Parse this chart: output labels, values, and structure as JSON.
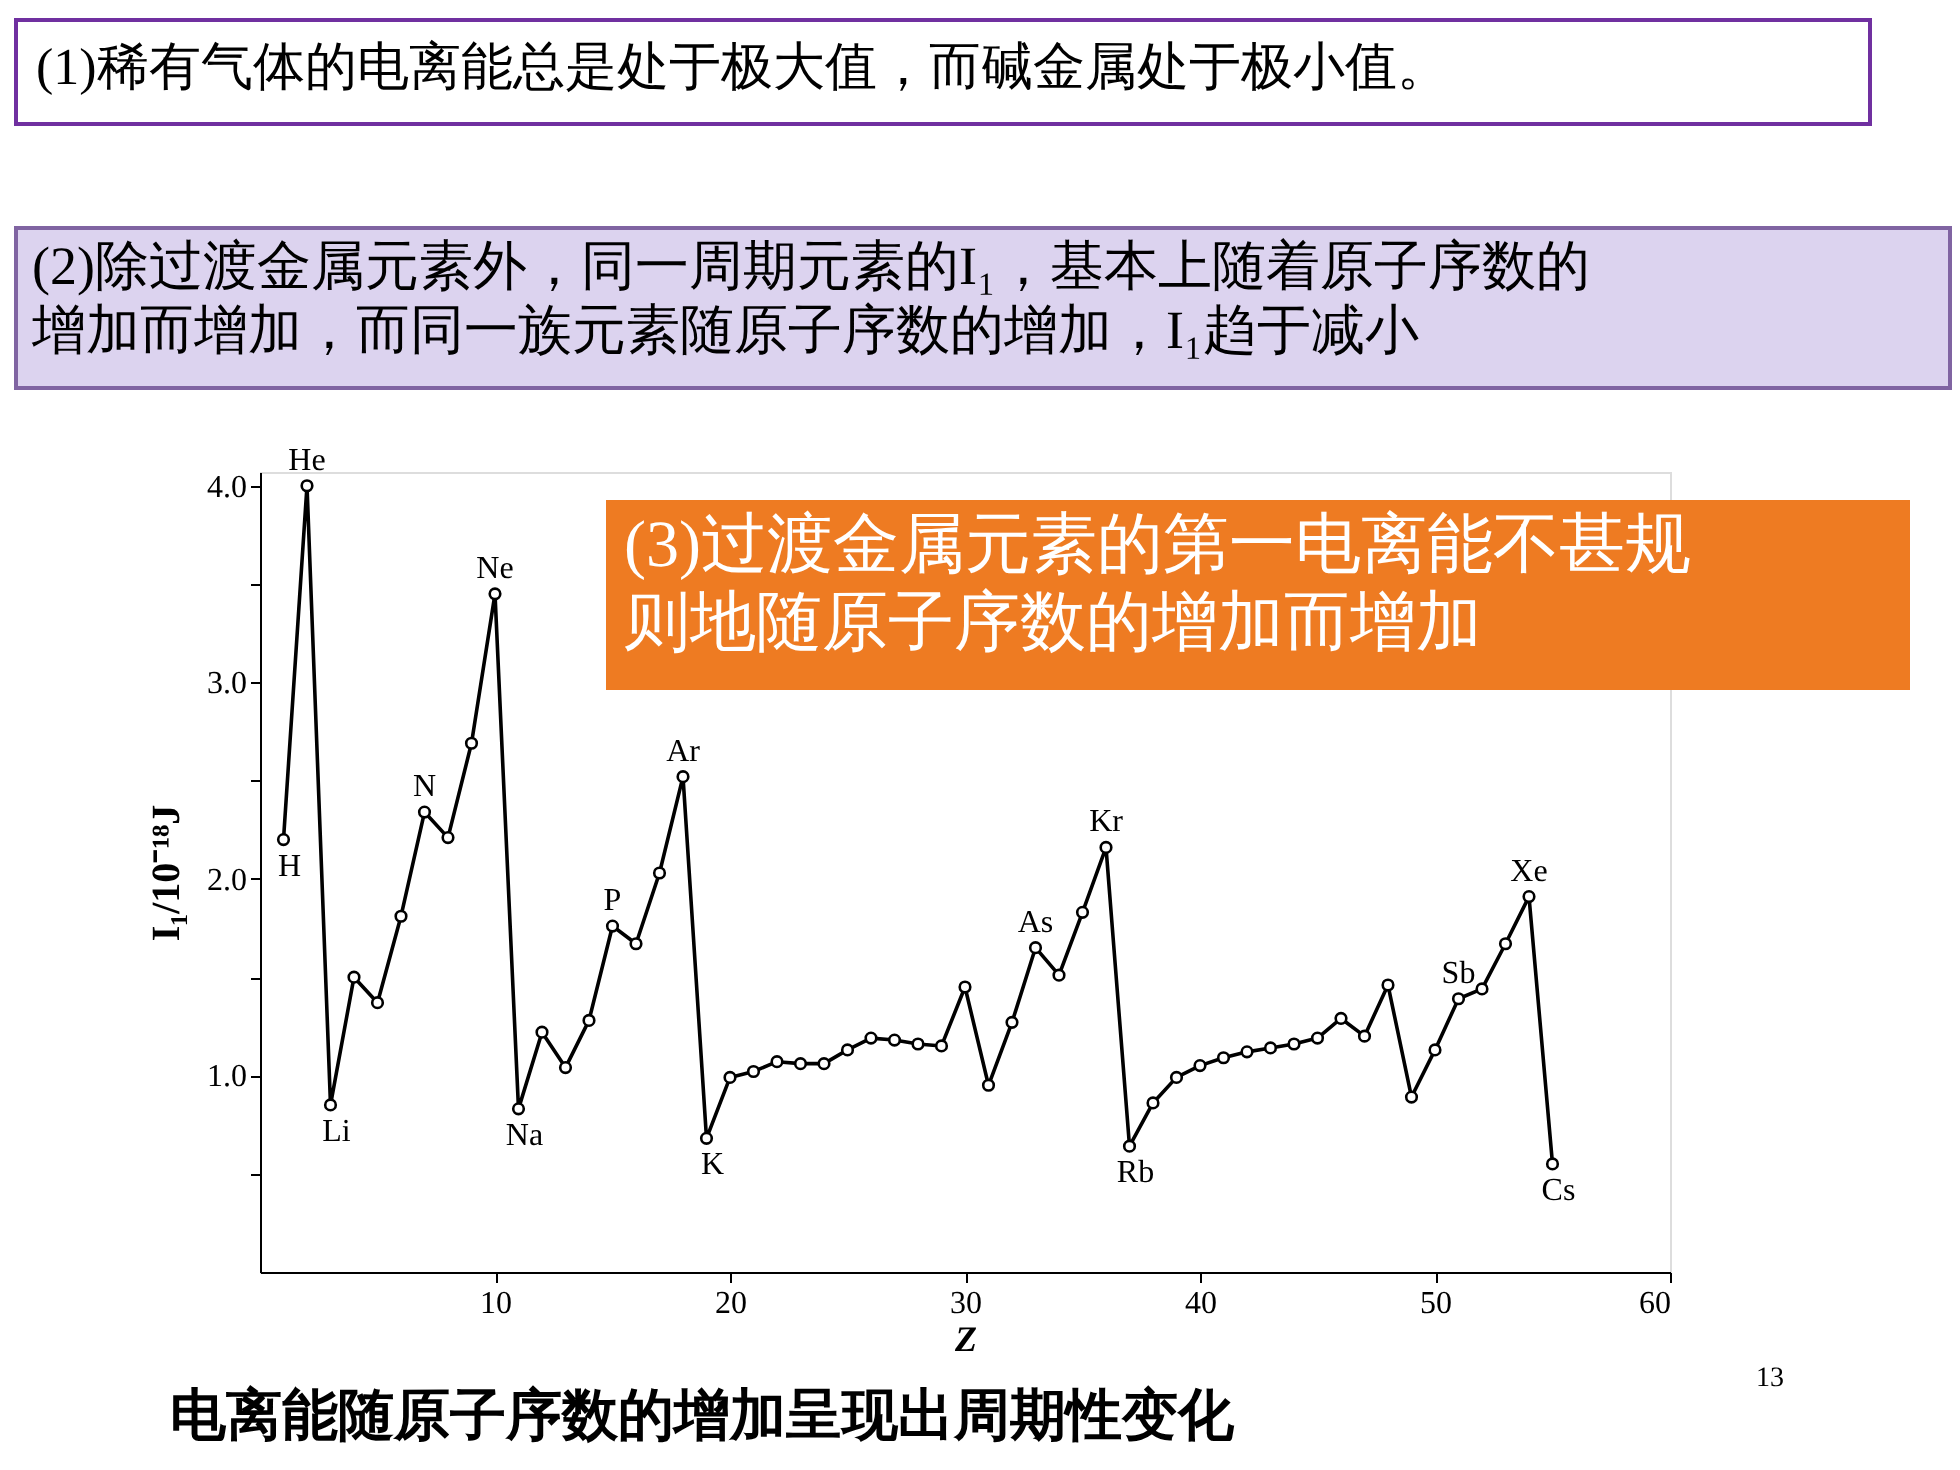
{
  "chart_data": {
    "type": "line",
    "x": [
      1,
      2,
      3,
      4,
      5,
      6,
      7,
      8,
      9,
      10,
      11,
      12,
      13,
      14,
      15,
      16,
      17,
      18,
      19,
      20,
      21,
      22,
      23,
      24,
      25,
      26,
      27,
      28,
      29,
      30,
      31,
      32,
      33,
      34,
      35,
      36,
      37,
      38,
      39,
      40,
      41,
      42,
      43,
      44,
      45,
      46,
      47,
      48,
      49,
      50,
      51,
      52,
      53,
      54,
      55
    ],
    "series": [
      {
        "color": "#000000",
        "values": [
          2.2,
          4.0,
          0.85,
          1.5,
          1.37,
          1.81,
          2.34,
          2.21,
          2.69,
          3.45,
          0.83,
          1.22,
          1.04,
          1.28,
          1.76,
          1.67,
          2.03,
          2.52,
          0.68,
          0.99,
          1.02,
          1.07,
          1.06,
          1.06,
          1.13,
          1.19,
          1.18,
          1.16,
          1.15,
          1.45,
          0.95,
          1.27,
          1.65,
          1.51,
          1.83,
          2.16,
          0.64,
          0.86,
          0.99,
          1.05,
          1.09,
          1.12,
          1.14,
          1.16,
          1.19,
          1.29,
          1.2,
          1.46,
          0.89,
          1.13,
          1.39,
          1.44,
          1.67,
          1.91,
          0.55
        ]
      }
    ],
    "xlabel": "Z",
    "ylabel": "I₁/10⁻¹⁸J",
    "xlim": [
      0,
      60
    ],
    "ylim": [
      0,
      4.07
    ],
    "xticks": [
      10,
      20,
      30,
      40,
      50,
      60
    ],
    "yticks": [
      {
        "value": 0.5,
        "label": null
      },
      {
        "value": 1,
        "label": "1.0"
      },
      {
        "value": 1.5,
        "label": null
      },
      {
        "value": 2,
        "label": "2.0"
      },
      {
        "value": 2.5,
        "label": null
      },
      {
        "value": 3,
        "label": "3.0"
      },
      {
        "value": 3.5,
        "label": null
      },
      {
        "value": 4,
        "label": "4.0"
      }
    ],
    "marker": "circle",
    "grid": false,
    "annotations": [
      "(1)稀有气体的电离能总是处于极大值，而碱金属处于极小值。",
      "(2)除过渡金属元素外，同一周期元素的I₁，基本上随着原子序数的增加而增加，而同一族元素随原子序数的增加，I₁趋于减小",
      "(3)过渡金属元素的第一电离能不甚规则地随原子序数的增加而增加",
      "电离能随原子序数的增加呈现出周期性变化",
      "13",
      {
        "text": "H",
        "x": 1,
        "y": 2.2
      },
      {
        "text": "He",
        "x": 2,
        "y": 4.0
      },
      {
        "text": "Li",
        "x": 3,
        "y": 0.85
      },
      {
        "text": "N",
        "x": 7,
        "y": 2.34
      },
      {
        "text": "Ne",
        "x": 10,
        "y": 3.45
      },
      {
        "text": "Na",
        "x": 11,
        "y": 0.83
      },
      {
        "text": "P",
        "x": 15,
        "y": 1.76
      },
      {
        "text": "Ar",
        "x": 18,
        "y": 2.52
      },
      {
        "text": "K",
        "x": 19,
        "y": 0.68
      },
      {
        "text": "As",
        "x": 33,
        "y": 1.65
      },
      {
        "text": "Kr",
        "x": 36,
        "y": 2.16
      },
      {
        "text": "Rb",
        "x": 37,
        "y": 0.64
      },
      {
        "text": "Sb",
        "x": 51,
        "y": 1.39
      },
      {
        "text": "Xe",
        "x": 54,
        "y": 1.91
      },
      {
        "text": "Cs",
        "x": 55,
        "y": 0.55
      }
    ]
  }
}
